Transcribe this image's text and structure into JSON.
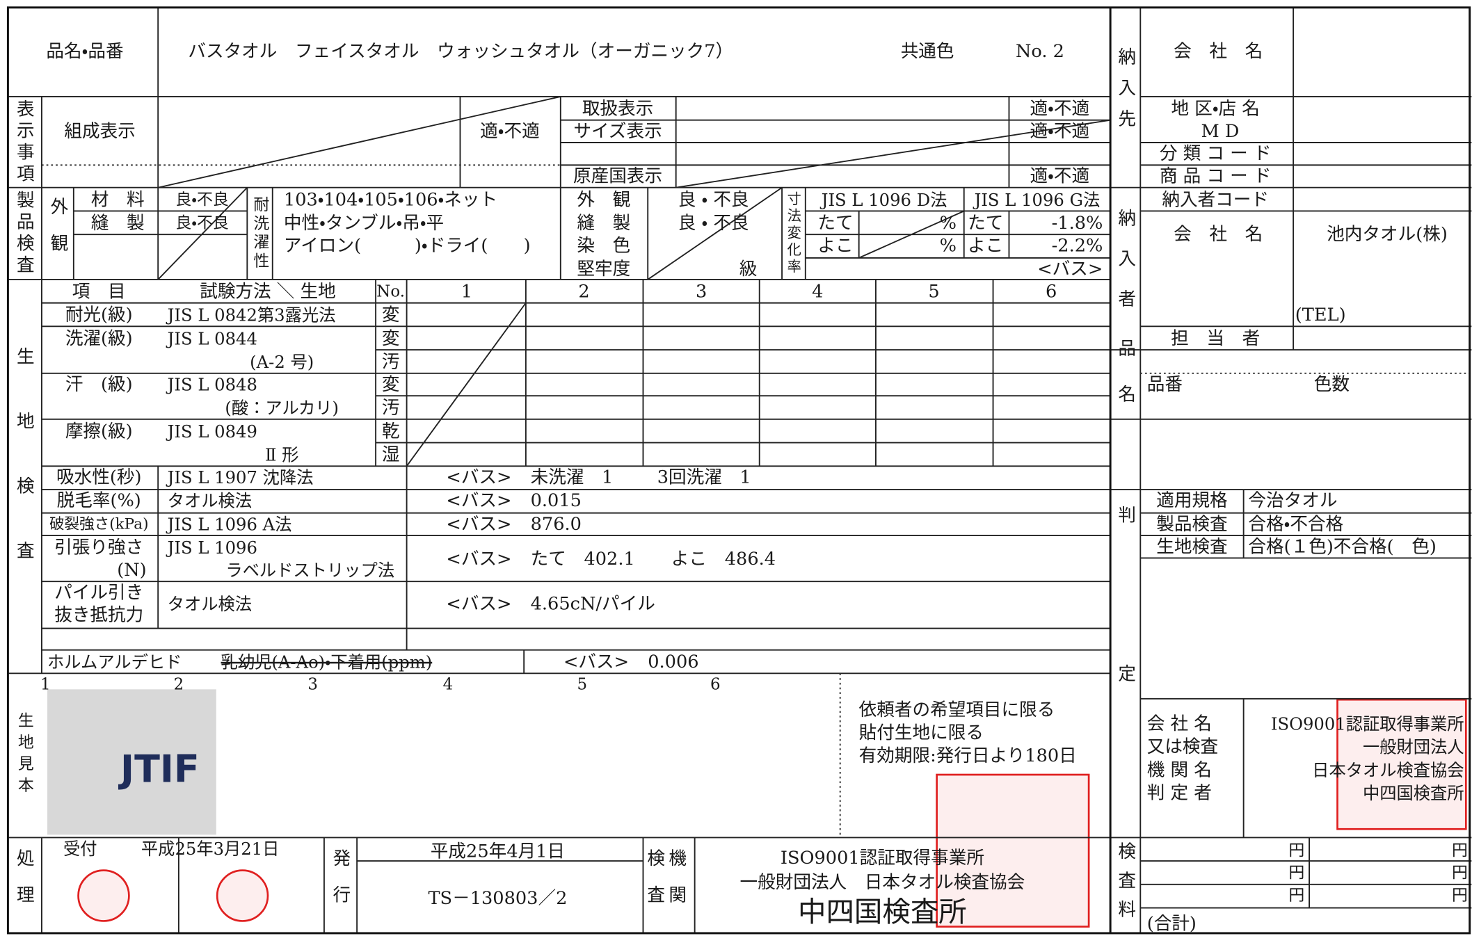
{
  "header": {
    "product_label": "品名・品番",
    "product_names": "バスタオル　フェイスタオル　ウォッシュタオル（オーガニック7）",
    "color": "共通色",
    "number": "No. 2"
  },
  "labeling": {
    "section": "表示事項",
    "composition": "組成表示",
    "composition_result": "適・不適",
    "care": "取扱表示",
    "size": "サイズ表示",
    "origin": "原産国表示",
    "care_result": "適・不適",
    "size_result": "適・不適",
    "origin_result": "適・不適"
  },
  "product_inspection": {
    "section": "製品検査",
    "appearance": "外観",
    "material": "材　料",
    "sewing": "縫　製",
    "material_result": "良・不良",
    "sewing_result": "良・不良",
    "wash_durability": "耐洗濯性",
    "wash_methods": [
      "103・104・105・106・ネット",
      "中性・タンブル・吊・平",
      "アイロン(　　　)・ドライ(　　)"
    ],
    "appearance2": "外　観",
    "sewing2": "縫　製",
    "dyeing": "染　色",
    "fastness": "堅牢度",
    "appearance2_result": "良 ・ 不良",
    "sewing2_result": "良 ・ 不良",
    "grade": "級",
    "dimension_change": "寸法変化率",
    "method_d": "JIS L 1096 D法",
    "method_g": "JIS L 1096 G法",
    "warp": "たて",
    "weft": "よこ",
    "percent_d_warp": "%",
    "percent_d_weft": "%",
    "warp_g": "たて",
    "weft_g": "よこ",
    "warp_g_value": "-1.8%",
    "weft_g_value": "-2.2%",
    "sample": "<バス>"
  },
  "fabric_inspection": {
    "section": "生地検査",
    "header": {
      "item": "項　目",
      "method": "試験方法 ＼ 生地",
      "no": "No.",
      "samples": [
        "1",
        "2",
        "3",
        "4",
        "5",
        "6"
      ]
    },
    "rows": [
      {
        "item": "耐光(級)",
        "method": [
          "JIS L 0842第3露光法"
        ],
        "marks": [
          "変"
        ]
      },
      {
        "item": "洗濯(級)",
        "method": [
          "JIS L 0844",
          "(A-2 号)"
        ],
        "marks": [
          "変",
          "汚"
        ]
      },
      {
        "item": "汗　(級)",
        "method": [
          "JIS L 0848",
          "(酸：アルカリ)"
        ],
        "marks": [
          "変",
          "汚"
        ]
      },
      {
        "item": "摩擦(級)",
        "method": [
          "JIS L 0849",
          "Ⅱ 形"
        ],
        "marks": [
          "乾",
          "湿"
        ]
      }
    ],
    "results": [
      {
        "item": [
          "吸水性(秒)"
        ],
        "method": [
          "JIS L 1907 沈降法"
        ],
        "sample": "<バス>",
        "values": [
          "未洗濯　1",
          "3回洗濯　1"
        ]
      },
      {
        "item": [
          "脱毛率(%)"
        ],
        "method": [
          "タオル検法"
        ],
        "sample": "<バス>",
        "values": [
          "0.015"
        ]
      },
      {
        "item": [
          "破裂強さ(kPa)"
        ],
        "method": [
          "JIS L 1096 A法"
        ],
        "sample": "<バス>",
        "values": [
          "876.0"
        ]
      },
      {
        "item": [
          "引張り強さ",
          "(N)"
        ],
        "method": [
          "JIS L 1096",
          "ラベルドストリップ法"
        ],
        "sample": "<バス>",
        "values": [
          "たて　402.1",
          "よこ　486.4"
        ]
      },
      {
        "item": [
          "パイル引き",
          "抜き抵抗力"
        ],
        "method": [
          "タオル検法"
        ],
        "sample": "<バス>",
        "values": [
          "4.65cN/パイル"
        ]
      }
    ],
    "formaldehyde": {
      "item": "ホルムアルデヒド",
      "scope": "乳幼児(A-Ao)・下着用(ppm)",
      "sample": "<バス>",
      "value": "0.006"
    }
  },
  "fabric_sample": {
    "section": "生地見本",
    "numbers": [
      "1",
      "2",
      "3",
      "4",
      "5",
      "6"
    ],
    "logo": "JTIF",
    "notes": [
      "依頼者の希望項目に限る",
      "貼付生地に限る",
      "有効期限:発行日より180日"
    ]
  },
  "processing": {
    "section": "処理",
    "received": "受付",
    "received_date": "平成25年3月21日",
    "issue": "発行",
    "issue_date": "平成25年4月1日",
    "certificate_no": "TS－130803／2",
    "org_label": [
      "検査",
      "機関"
    ],
    "org": [
      "ISO9001認証取得事業所",
      "一般財団法人　日本タオル検査協会",
      "中四国検査所"
    ]
  },
  "right_panel": {
    "delivery_to": "納入先",
    "company_name": "会　社　名",
    "district": "地 区・店 名",
    "md": "M D",
    "category_code": "分 類 コ ー ド",
    "product_code": "商 品 コ ー ド",
    "supplier_code": "納入者コード",
    "supplier": "納入者",
    "supplier_company_label": "会　社　名",
    "supplier_company": "池内タオル(株)",
    "tel": "(TEL)",
    "person": "担　当　者",
    "item_name": "品名",
    "item_number": "品番",
    "color_count": "色数",
    "judgment": "判定",
    "standard_label": "適用規格",
    "standard": "今治タオル",
    "product_check_label": "製品検査",
    "product_check": "合格・不合格",
    "fabric_check_label": "生地検査",
    "fabric_check": "合格(１色)不合格(　色)",
    "judge_labels": [
      "会 社 名",
      "又は検査",
      "機 関 名",
      "判 定 者"
    ],
    "judge": [
      "ISO9001認証取得事業所",
      "一般財団法人",
      "日本タオル検査協会",
      "中四国検査所"
    ],
    "fee": "検査料",
    "yen": [
      "円",
      "円",
      "円",
      "円",
      "円",
      "円"
    ],
    "total": "(合計)"
  }
}
